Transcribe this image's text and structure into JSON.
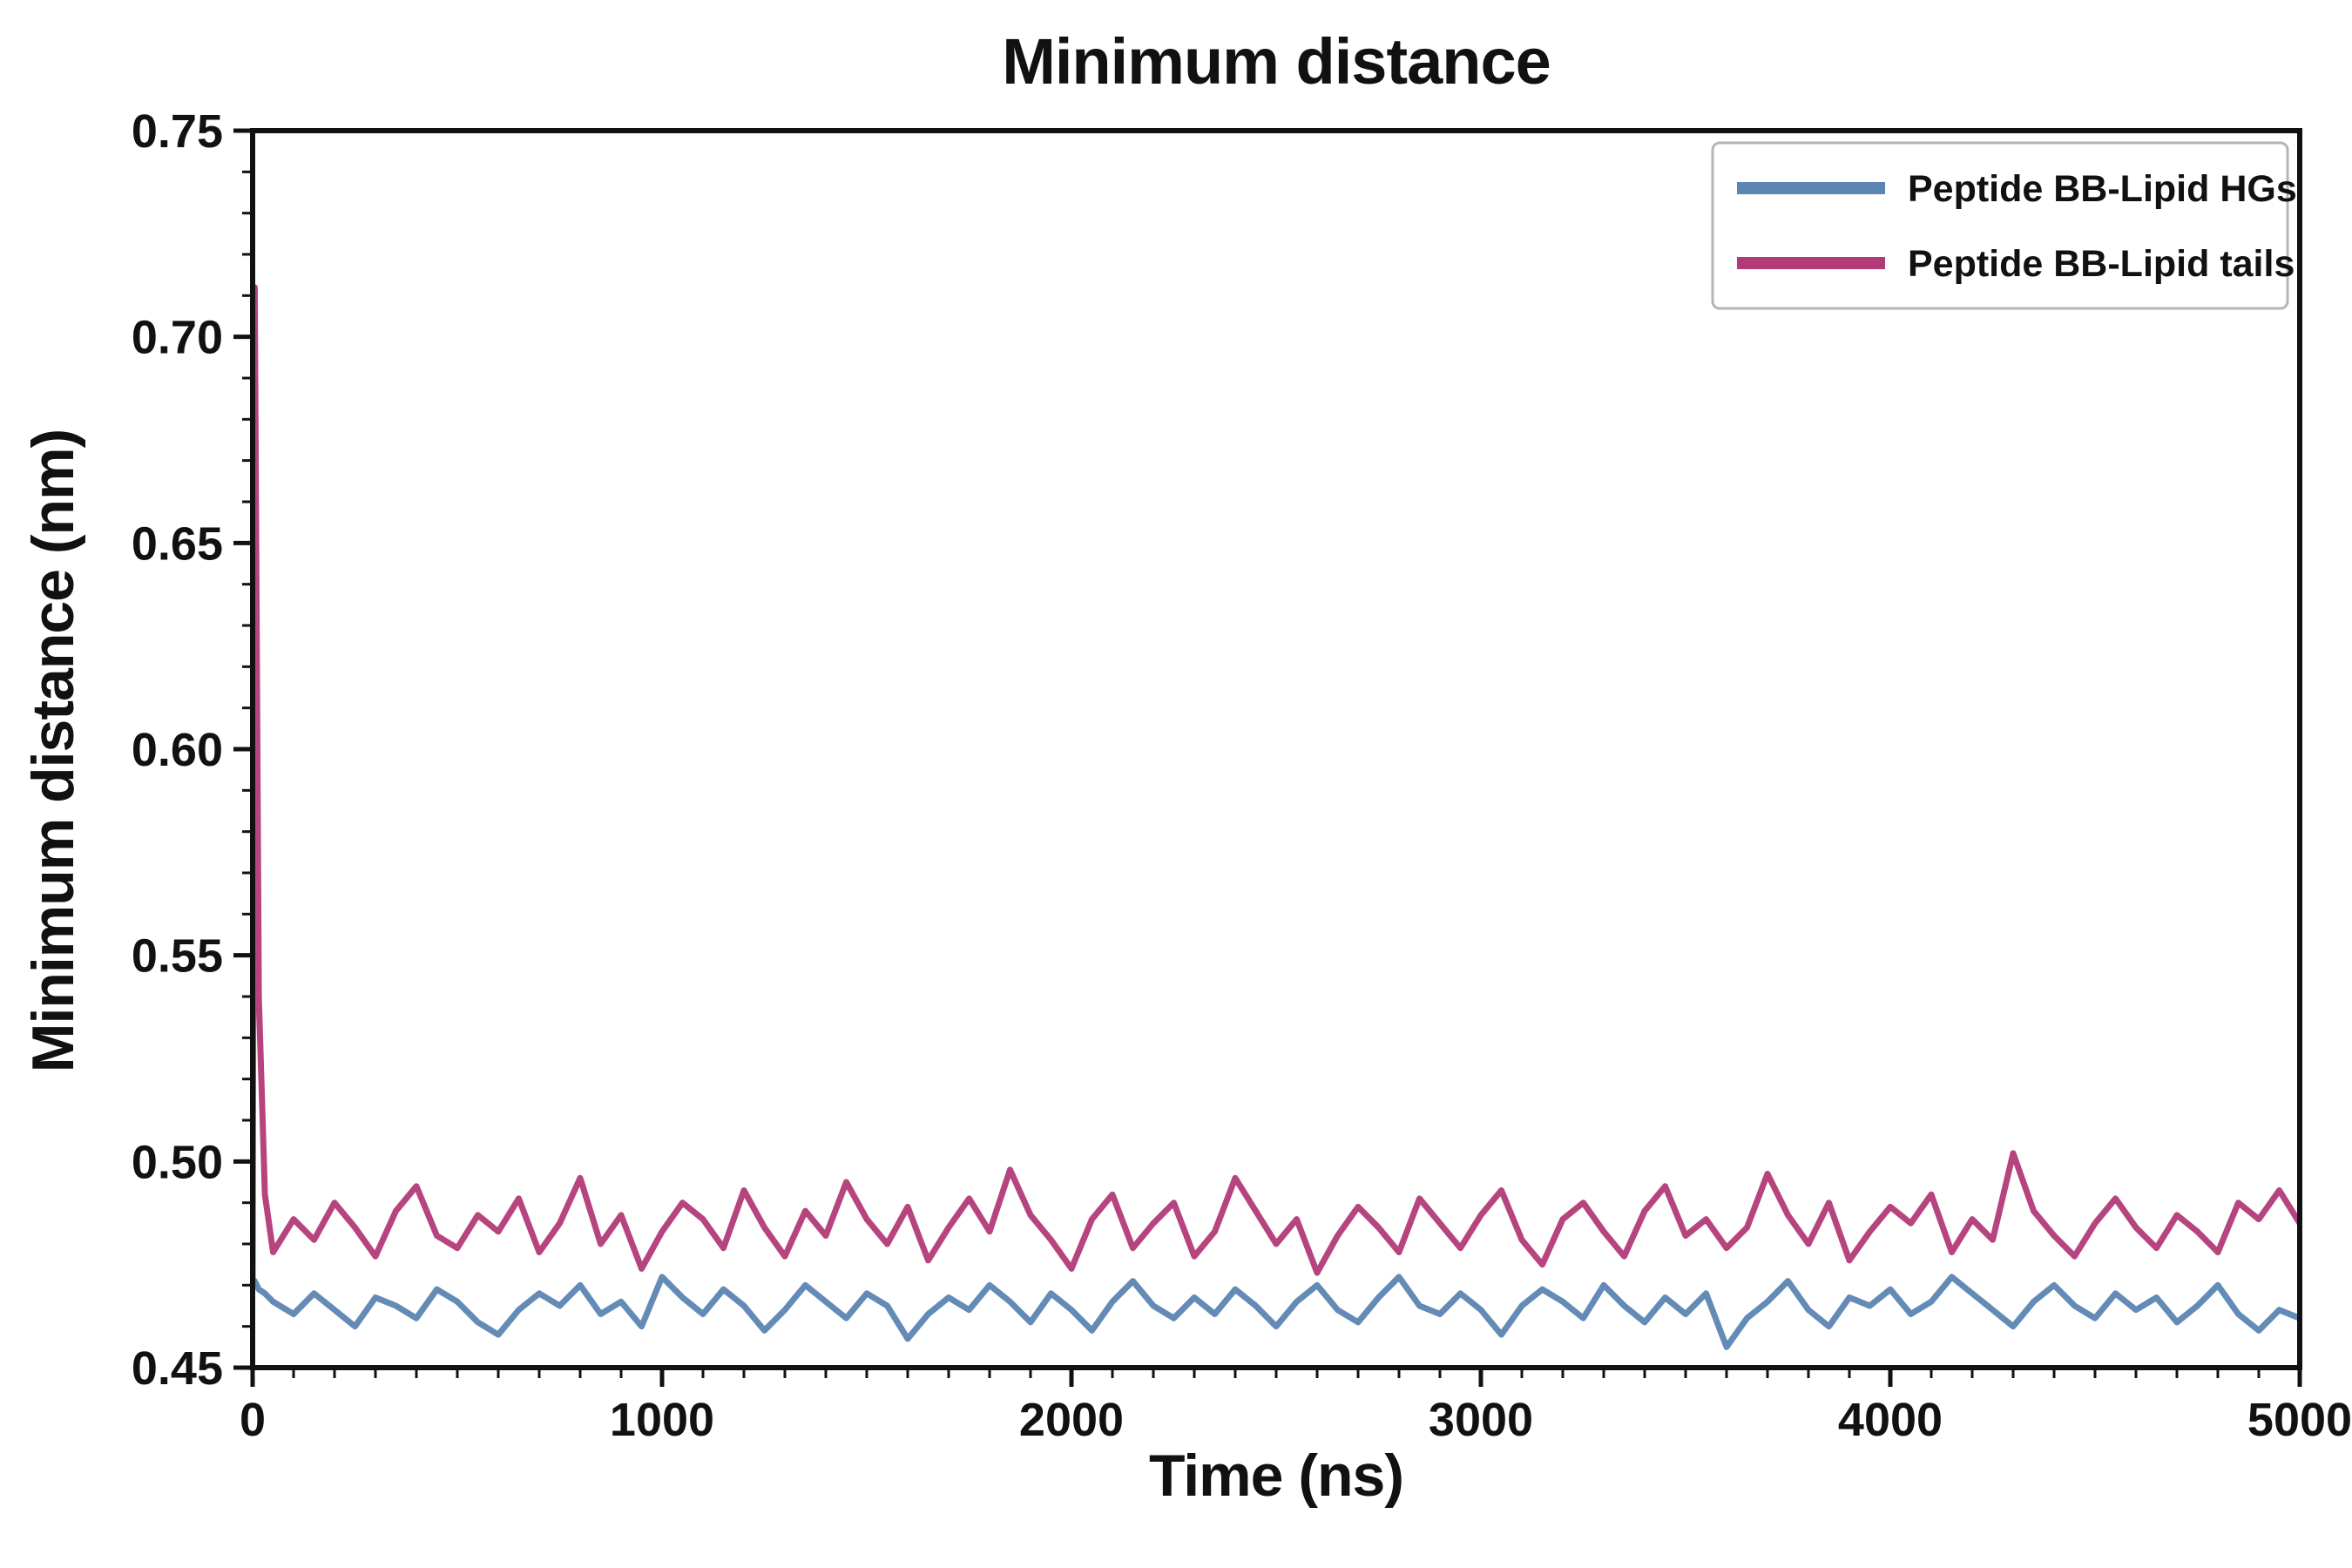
{
  "figure": {
    "title": "Minimum distance",
    "xlabel": "Time (ns)",
    "ylabel": "Minimum distance (nm)"
  },
  "chart_data": {
    "type": "line",
    "title": "Minimum distance",
    "xlabel": "Time (ns)",
    "ylabel": "Minimum distance (nm)",
    "xlim": [
      0,
      5000
    ],
    "ylim": [
      0.45,
      0.75
    ],
    "xticks": [
      0,
      1000,
      2000,
      3000,
      4000,
      5000
    ],
    "yticks": [
      0.45,
      0.5,
      0.55,
      0.6,
      0.65,
      0.7,
      0.75
    ],
    "x_minor_step": 100,
    "y_minor_step": 0.01,
    "grid": false,
    "legend": {
      "position": "upper right"
    },
    "x": [
      0,
      5,
      15,
      30,
      50,
      100,
      150,
      200,
      250,
      300,
      350,
      400,
      450,
      500,
      550,
      600,
      650,
      700,
      750,
      800,
      850,
      900,
      950,
      1000,
      1050,
      1100,
      1150,
      1200,
      1250,
      1300,
      1350,
      1400,
      1450,
      1500,
      1550,
      1600,
      1650,
      1700,
      1750,
      1800,
      1850,
      1900,
      1950,
      2000,
      2050,
      2100,
      2150,
      2200,
      2250,
      2300,
      2350,
      2400,
      2450,
      2500,
      2550,
      2600,
      2650,
      2700,
      2750,
      2800,
      2850,
      2900,
      2950,
      3000,
      3050,
      3100,
      3150,
      3200,
      3250,
      3300,
      3350,
      3400,
      3450,
      3500,
      3550,
      3600,
      3650,
      3700,
      3750,
      3800,
      3850,
      3900,
      3950,
      4000,
      4050,
      4100,
      4150,
      4200,
      4250,
      4300,
      4350,
      4400,
      4450,
      4500,
      4550,
      4600,
      4650,
      4700,
      4750,
      4800,
      4850,
      4900,
      4950,
      5000
    ],
    "series": [
      {
        "name": "Peptide BB-Lipid HGs",
        "color": "#5b85b2",
        "values": [
          0.47,
          0.471,
          0.469,
          0.468,
          0.466,
          0.463,
          0.468,
          0.464,
          0.46,
          0.467,
          0.465,
          0.462,
          0.469,
          0.466,
          0.461,
          0.458,
          0.464,
          0.468,
          0.465,
          0.47,
          0.463,
          0.466,
          0.46,
          0.472,
          0.467,
          0.463,
          0.469,
          0.465,
          0.459,
          0.464,
          0.47,
          0.466,
          0.462,
          0.468,
          0.465,
          0.457,
          0.463,
          0.467,
          0.464,
          0.47,
          0.466,
          0.461,
          0.468,
          0.464,
          0.459,
          0.466,
          0.471,
          0.465,
          0.462,
          0.467,
          0.463,
          0.469,
          0.465,
          0.46,
          0.466,
          0.47,
          0.464,
          0.461,
          0.467,
          0.472,
          0.465,
          0.463,
          0.468,
          0.464,
          0.458,
          0.465,
          0.469,
          0.466,
          0.462,
          0.47,
          0.465,
          0.461,
          0.467,
          0.463,
          0.468,
          0.455,
          0.462,
          0.466,
          0.471,
          0.464,
          0.46,
          0.467,
          0.465,
          0.469,
          0.463,
          0.466,
          0.472,
          0.468,
          0.464,
          0.46,
          0.466,
          0.47,
          0.465,
          0.462,
          0.468,
          0.464,
          0.467,
          0.461,
          0.465,
          0.47,
          0.463,
          0.459,
          0.464,
          0.462
        ]
      },
      {
        "name": "Peptide BB-Lipid tails",
        "color": "#b23a78",
        "values": [
          0.47,
          0.712,
          0.54,
          0.492,
          0.478,
          0.486,
          0.481,
          0.49,
          0.484,
          0.477,
          0.488,
          0.494,
          0.482,
          0.479,
          0.487,
          0.483,
          0.491,
          0.478,
          0.485,
          0.496,
          0.48,
          0.487,
          0.474,
          0.483,
          0.49,
          0.486,
          0.479,
          0.493,
          0.484,
          0.477,
          0.488,
          0.482,
          0.495,
          0.486,
          0.48,
          0.489,
          0.476,
          0.484,
          0.491,
          0.483,
          0.498,
          0.487,
          0.481,
          0.474,
          0.486,
          0.492,
          0.479,
          0.485,
          0.49,
          0.477,
          0.483,
          0.496,
          0.488,
          0.48,
          0.486,
          0.473,
          0.482,
          0.489,
          0.484,
          0.478,
          0.491,
          0.485,
          0.479,
          0.487,
          0.493,
          0.481,
          0.475,
          0.486,
          0.49,
          0.483,
          0.477,
          0.488,
          0.494,
          0.482,
          0.486,
          0.479,
          0.484,
          0.497,
          0.487,
          0.48,
          0.49,
          0.476,
          0.483,
          0.489,
          0.485,
          0.492,
          0.478,
          0.486,
          0.481,
          0.502,
          0.488,
          0.482,
          0.477,
          0.485,
          0.491,
          0.484,
          0.479,
          0.487,
          0.483,
          0.478,
          0.49,
          0.486,
          0.493,
          0.485
        ]
      }
    ]
  }
}
